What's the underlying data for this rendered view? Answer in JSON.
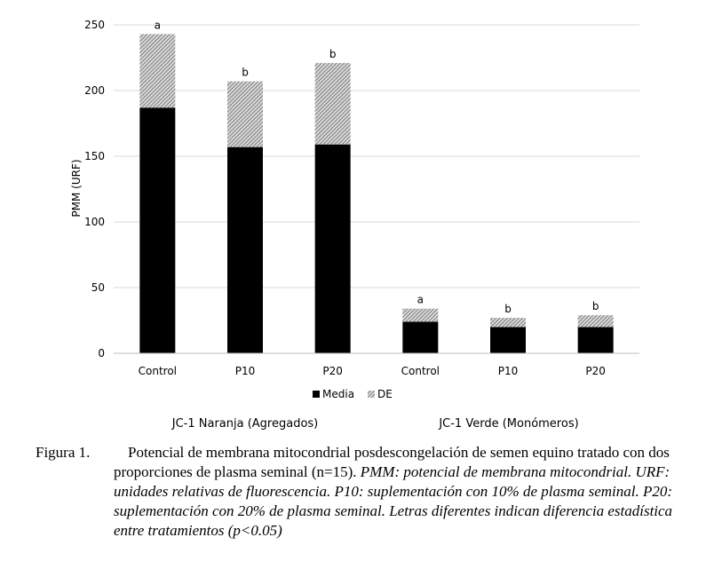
{
  "chart_data": {
    "type": "bar",
    "stacked": true,
    "categories": [
      "Control",
      "P10",
      "P20",
      "Control",
      "P10",
      "P20"
    ],
    "groups": [
      "JC-1 Naranja (Agregados)",
      "JC-1 Verde (Monómeros)"
    ],
    "series": [
      {
        "name": "Media",
        "values": [
          187,
          157,
          159,
          24,
          20,
          20
        ],
        "color": "#000000"
      },
      {
        "name": "DE",
        "values": [
          56,
          50,
          62,
          10,
          7,
          9
        ],
        "color": "hatch-gray"
      }
    ],
    "annotations": [
      "a",
      "b",
      "b",
      "a",
      "b",
      "b"
    ],
    "ylabel": "PMM (URF)",
    "ylim": [
      0,
      250
    ],
    "yticks": [
      0,
      50,
      100,
      150,
      200,
      250
    ],
    "grid": true,
    "legend": "bottom"
  },
  "caption": {
    "label": "Figura 1.",
    "normal": "Potencial de membrana mitocondrial posdescongelación de semen equino tratado con dos proporciones de plasma seminal (n=15).",
    "italic": "PMM: potencial de membrana mitocondrial. URF: unidades relativas de fluorescencia. P10: suplementación con 10% de plasma seminal. P20: suplementación con 20% de plasma seminal. Letras diferentes indican diferencia estadística entre tratamientos (p<0.05)"
  }
}
